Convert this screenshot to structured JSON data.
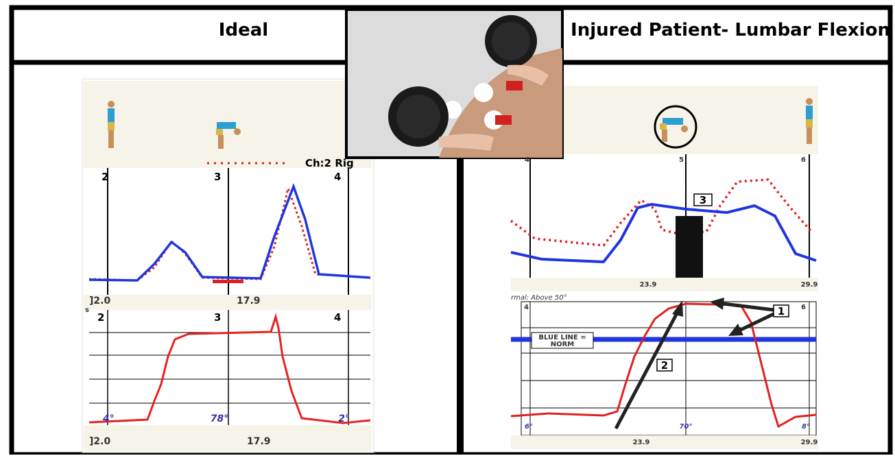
{
  "header": {
    "left_title": "Ideal",
    "right_title": "Injured Patient- Lumbar Flexion"
  },
  "left_panel": {
    "legend_label": "Ch:2 Rig",
    "top_plot": {
      "markers": [
        "2",
        "3",
        "4"
      ],
      "axis_labels": [
        "]2.0",
        "17.9"
      ],
      "axis_note": "s"
    },
    "bottom_plot": {
      "markers": [
        "2",
        "3",
        "4"
      ],
      "angles": [
        "4°",
        "78°",
        "2°"
      ],
      "axis_labels": [
        "]2.0",
        "17.9"
      ]
    }
  },
  "right_panel": {
    "top_plot": {
      "markers": [
        "4",
        "5",
        "6"
      ],
      "callout": "3",
      "axis_labels": [
        "23.9",
        "29.9"
      ]
    },
    "bottom_plot": {
      "note": "rmal: Above 50°",
      "markers": [
        "4",
        "6"
      ],
      "callouts": [
        "1",
        "2"
      ],
      "norm_label": [
        "BLUE LINE =",
        "NORM"
      ],
      "angles": [
        "6°",
        "70°",
        "8°"
      ],
      "axis_labels": [
        "23.9",
        "29.9"
      ]
    }
  }
}
